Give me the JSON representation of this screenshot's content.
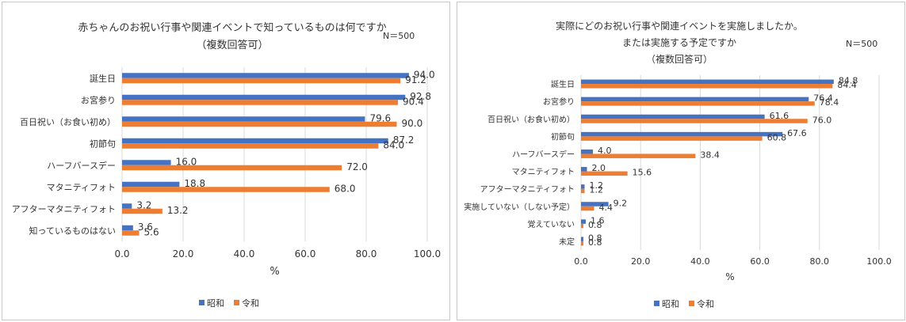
{
  "legend": {
    "series_a": "昭和",
    "series_b": "令和"
  },
  "colors": {
    "series_a": "#4472C4",
    "series_b": "#ED7D31",
    "grid": "#d9d9d9"
  },
  "chart_data": [
    {
      "type": "bar",
      "orientation": "horizontal",
      "title_lines": [
        "赤ちゃんのお祝い行事や関連イベントで知っているものは何ですか",
        "（複数回答可）"
      ],
      "sample_note": "N＝500",
      "xlabel": "%",
      "xlim": [
        0,
        100
      ],
      "x_ticks": [
        "0.0",
        "20.0",
        "40.0",
        "60.0",
        "80.0",
        "100.0"
      ],
      "categories": [
        "誕生日",
        "お宮参り",
        "百日祝い（お食い初め）",
        "初節句",
        "ハーフバースデー",
        "マタニティフォト",
        "アフターマタニティフォト",
        "知っているものはない"
      ],
      "series": [
        {
          "name": "昭和",
          "values": [
            94.0,
            92.8,
            79.6,
            87.2,
            16.0,
            18.8,
            3.2,
            3.6
          ],
          "labels": [
            "94.0",
            "92.8",
            "79.6",
            "87.2",
            "16.0",
            "18.8",
            "3.2",
            "3.6"
          ]
        },
        {
          "name": "令和",
          "values": [
            91.2,
            90.4,
            90.0,
            84.0,
            72.0,
            68.0,
            13.2,
            5.6
          ],
          "labels": [
            "91.2",
            "90.4",
            "90.0",
            "84.0",
            "72.0",
            "68.0",
            "13.2",
            "5.6"
          ]
        }
      ],
      "grid": true,
      "legend_position": "bottom"
    },
    {
      "type": "bar",
      "orientation": "horizontal",
      "title_lines": [
        "実際にどのお祝い行事や関連イベントを実施しましたか。",
        "または実施する予定ですか",
        "（複数回答可）"
      ],
      "sample_note": "N＝500",
      "xlabel": "%",
      "xlim": [
        0,
        100
      ],
      "x_ticks": [
        "0.0",
        "20.0",
        "40.0",
        "60.0",
        "80.0",
        "100.0"
      ],
      "categories": [
        "誕生日",
        "お宮参り",
        "百日祝い（お食い初め）",
        "初節句",
        "ハーフバースデー",
        "マタニティフォト",
        "アフターマタニティフォト",
        "実施していない（しない予定）",
        "覚えていない",
        "未定"
      ],
      "series": [
        {
          "name": "昭和",
          "values": [
            84.8,
            76.4,
            61.6,
            67.6,
            4.0,
            2.0,
            1.2,
            9.2,
            1.6,
            0.8
          ],
          "labels": [
            "84.8",
            "76.4",
            "61.6",
            "67.6",
            "4.0",
            "2.0",
            "1.2",
            "9.2",
            "1.6",
            "0.8"
          ]
        },
        {
          "name": "令和",
          "values": [
            84.4,
            78.4,
            76.0,
            60.8,
            38.4,
            15.6,
            1.2,
            4.4,
            0.8,
            0.8
          ],
          "labels": [
            "84.4",
            "78.4",
            "76.0",
            "60.8",
            "38.4",
            "15.6",
            "1.2",
            "4.4",
            "0.8",
            "0.8"
          ]
        }
      ],
      "grid": true,
      "legend_position": "bottom"
    }
  ]
}
